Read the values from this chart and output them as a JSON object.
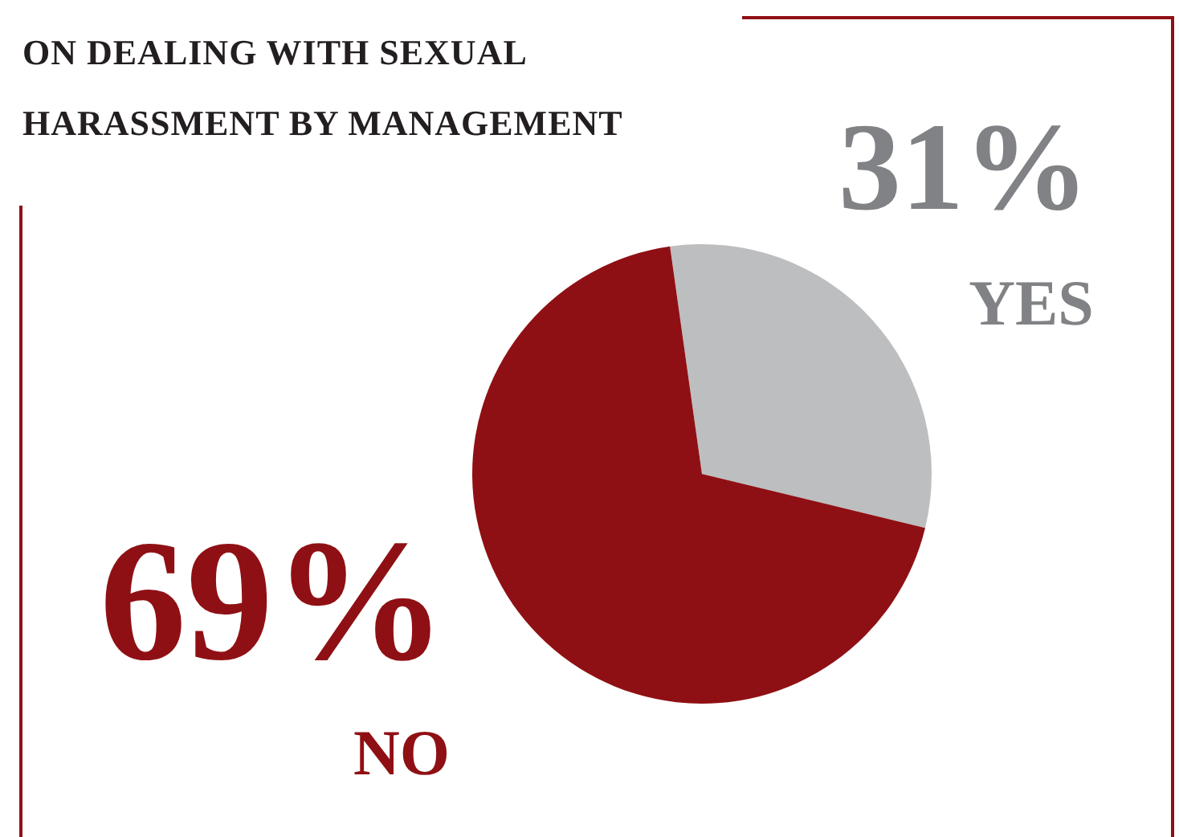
{
  "chart_data": {
    "type": "pie",
    "title": "ON DEALING WITH SEXUAL HARASSMENT BY MANAGEMENT",
    "categories": [
      "YES",
      "NO"
    ],
    "values": [
      31,
      69
    ],
    "colors": [
      "#bdbec0",
      "#8f1014"
    ],
    "value_labels": [
      "31%",
      "69%"
    ]
  }
}
